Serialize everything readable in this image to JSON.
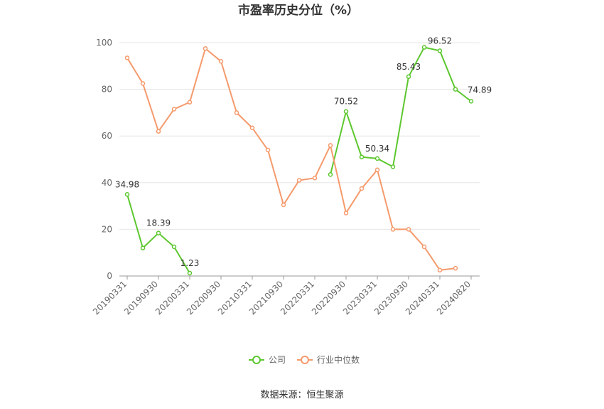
{
  "chart_data": {
    "type": "line",
    "title": "市盈率历史分位（%）",
    "ylim": [
      0,
      100
    ],
    "yticks": [
      0,
      20,
      40,
      60,
      80,
      100
    ],
    "x": [
      "20190331",
      "20190630",
      "20190930",
      "20191231",
      "20200331",
      "20200630",
      "20200930",
      "20201231",
      "20210331",
      "20210630",
      "20210930",
      "20211231",
      "20220331",
      "20220630",
      "20220930",
      "20221231",
      "20230331",
      "20230630",
      "20230930",
      "20231231",
      "20240331",
      "20240630",
      "20240820"
    ],
    "xtick_labels": [
      "20190331",
      "20190930",
      "20200331",
      "20200930",
      "20210331",
      "20210930",
      "20220331",
      "20220930",
      "20230331",
      "20230930",
      "20240331",
      "20240820"
    ],
    "series": [
      {
        "name": "公司",
        "color": "#5cc72e",
        "values": [
          34.98,
          12.0,
          18.39,
          12.5,
          1.23,
          null,
          null,
          null,
          null,
          null,
          null,
          null,
          null,
          43.5,
          70.52,
          51.0,
          50.34,
          46.8,
          85.43,
          98.0,
          96.52,
          80.0,
          74.89
        ],
        "labels": {
          "0": "34.98",
          "2": "18.39",
          "4": "1.23",
          "14": "70.52",
          "16": "50.34",
          "18": "85.43",
          "20": "96.52",
          "22": "74.89"
        }
      },
      {
        "name": "行业中位数",
        "color": "#f59a6c",
        "values": [
          93.5,
          82.5,
          62.0,
          71.5,
          74.5,
          97.5,
          92.0,
          70.0,
          63.5,
          54.0,
          30.5,
          41.0,
          42.0,
          56.0,
          27.0,
          37.5,
          45.5,
          20.0,
          20.0,
          12.5,
          2.5,
          3.3,
          null
        ]
      }
    ],
    "legend_position": "bottom-center",
    "source": "数据来源：恒生聚源"
  }
}
